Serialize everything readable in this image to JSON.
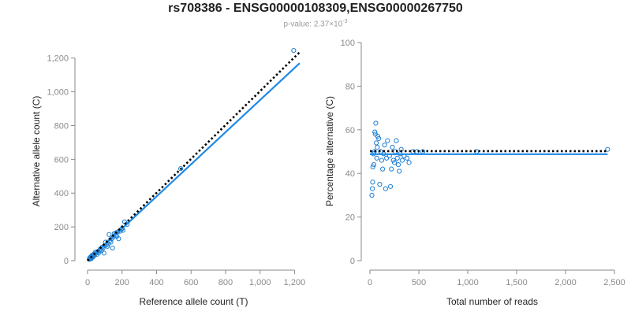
{
  "title": "rs708386 - ENSG00000108309,ENSG00000267750",
  "subtitle": {
    "prefix": "p-value: 2.37×10",
    "exponent": "-3"
  },
  "colors": {
    "points": "#1f7fd1",
    "fit_line": "#1e88e5",
    "reference_line": "#000000",
    "axis": "#8a8a8a"
  },
  "chart_data": [
    {
      "type": "scatter",
      "name": "counts",
      "xlabel": "Reference allele count (T)",
      "ylabel": "Alternative allele count (C)",
      "xlim": [
        0,
        1230
      ],
      "ylim": [
        0,
        1250
      ],
      "xticks": [
        0,
        200,
        400,
        600,
        800,
        1000,
        1200
      ],
      "xtick_labels": [
        "0",
        "200",
        "400",
        "600",
        "800",
        "1,000",
        "1,200"
      ],
      "yticks": [
        0,
        200,
        400,
        600,
        800,
        1000,
        1200
      ],
      "ytick_labels": [
        "0",
        "200",
        "400",
        "600",
        "800",
        "1,000",
        "1,200"
      ],
      "points": [
        [
          10,
          8
        ],
        [
          12,
          15
        ],
        [
          15,
          10
        ],
        [
          18,
          22
        ],
        [
          20,
          18
        ],
        [
          22,
          12
        ],
        [
          25,
          30
        ],
        [
          28,
          25
        ],
        [
          30,
          20
        ],
        [
          32,
          35
        ],
        [
          35,
          28
        ],
        [
          38,
          40
        ],
        [
          40,
          32
        ],
        [
          45,
          50
        ],
        [
          50,
          45
        ],
        [
          55,
          38
        ],
        [
          60,
          55
        ],
        [
          65,
          48
        ],
        [
          70,
          62
        ],
        [
          75,
          70
        ],
        [
          80,
          58
        ],
        [
          85,
          80
        ],
        [
          90,
          75
        ],
        [
          95,
          45
        ],
        [
          100,
          90
        ],
        [
          105,
          110
        ],
        [
          110,
          95
        ],
        [
          115,
          85
        ],
        [
          120,
          100
        ],
        [
          125,
          155
        ],
        [
          130,
          120
        ],
        [
          135,
          110
        ],
        [
          140,
          130
        ],
        [
          145,
          75
        ],
        [
          150,
          140
        ],
        [
          155,
          160
        ],
        [
          160,
          150
        ],
        [
          165,
          165
        ],
        [
          170,
          145
        ],
        [
          175,
          170
        ],
        [
          180,
          130
        ],
        [
          190,
          175
        ],
        [
          195,
          185
        ],
        [
          200,
          190
        ],
        [
          205,
          180
        ],
        [
          215,
          230
        ],
        [
          230,
          215
        ],
        [
          540,
          545
        ],
        [
          1195,
          1245
        ]
      ],
      "fit_line": [
        [
          0,
          0
        ],
        [
          1230,
          1170
        ]
      ],
      "reference_line": [
        [
          0,
          0
        ],
        [
          1230,
          1235
        ]
      ]
    },
    {
      "type": "scatter",
      "name": "percentage",
      "xlabel": "Total number of reads",
      "ylabel": "Percentage alternative (C)",
      "xlim": [
        0,
        2500
      ],
      "ylim": [
        0,
        100
      ],
      "xticks": [
        0,
        500,
        1000,
        1500,
        2000,
        2500
      ],
      "xtick_labels": [
        "0",
        "500",
        "1,000",
        "1,500",
        "2,000",
        "2,500"
      ],
      "yticks": [
        0,
        20,
        40,
        60,
        80,
        100
      ],
      "ytick_labels": [
        "0",
        "20",
        "40",
        "60",
        "80",
        "100"
      ],
      "points": [
        [
          20,
          30
        ],
        [
          25,
          33
        ],
        [
          28,
          36
        ],
        [
          30,
          43
        ],
        [
          35,
          49
        ],
        [
          40,
          44
        ],
        [
          45,
          50
        ],
        [
          50,
          59
        ],
        [
          55,
          58
        ],
        [
          60,
          63
        ],
        [
          65,
          54
        ],
        [
          70,
          47
        ],
        [
          75,
          52
        ],
        [
          80,
          57
        ],
        [
          90,
          56
        ],
        [
          100,
          35
        ],
        [
          110,
          50
        ],
        [
          120,
          46
        ],
        [
          130,
          42
        ],
        [
          140,
          49
        ],
        [
          150,
          53
        ],
        [
          160,
          33
        ],
        [
          170,
          47
        ],
        [
          180,
          55
        ],
        [
          200,
          48
        ],
        [
          210,
          34
        ],
        [
          220,
          42
        ],
        [
          230,
          52
        ],
        [
          240,
          46
        ],
        [
          250,
          45
        ],
        [
          260,
          50
        ],
        [
          270,
          55
        ],
        [
          280,
          47
        ],
        [
          290,
          44
        ],
        [
          300,
          41
        ],
        [
          310,
          49
        ],
        [
          320,
          51
        ],
        [
          330,
          46
        ],
        [
          350,
          48
        ],
        [
          380,
          47
        ],
        [
          400,
          45
        ],
        [
          440,
          50
        ],
        [
          480,
          50
        ],
        [
          540,
          50
        ],
        [
          1090,
          50
        ],
        [
          2430,
          51
        ]
      ],
      "fit_line": [
        [
          0,
          48.8
        ],
        [
          2430,
          48.8
        ]
      ],
      "reference_line": [
        [
          0,
          50.2
        ],
        [
          2430,
          50.2
        ]
      ]
    }
  ]
}
